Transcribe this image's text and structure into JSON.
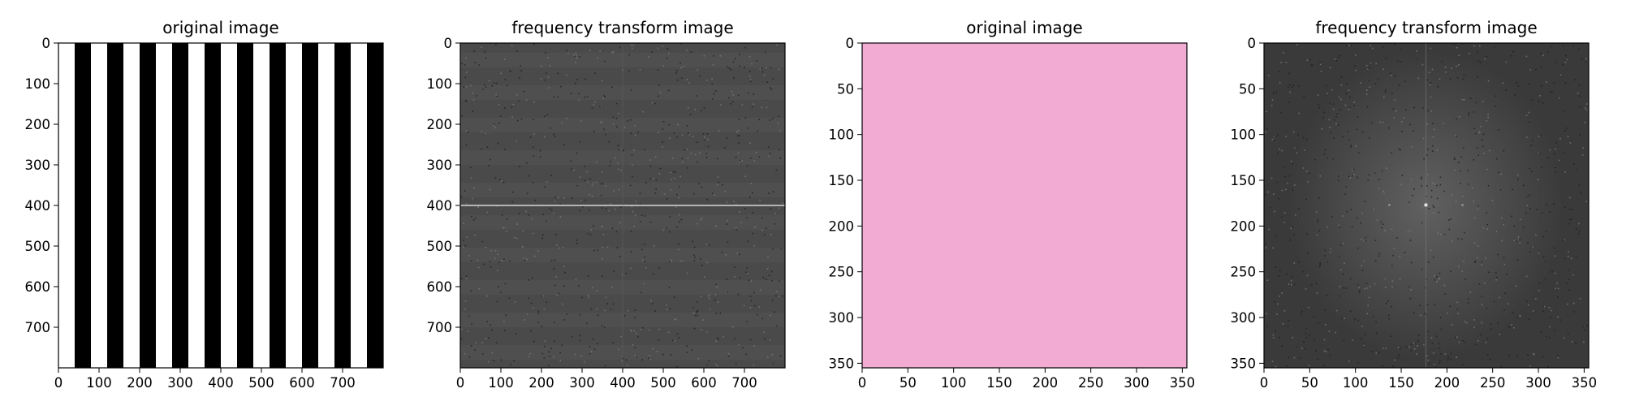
{
  "figure": {
    "background": "#ffffff"
  },
  "chart_data": [
    {
      "type": "image",
      "title": "original image",
      "content": "vertical black and white stripes",
      "stripe_width": 40,
      "stripe_colors": [
        "#ffffff",
        "#000000"
      ],
      "xlim": [
        0,
        800
      ],
      "ylim": [
        800,
        0
      ],
      "xticks": [
        0,
        100,
        200,
        300,
        400,
        500,
        600,
        700
      ],
      "yticks": [
        0,
        100,
        200,
        300,
        400,
        500,
        600,
        700
      ]
    },
    {
      "type": "image",
      "title": "frequency transform image",
      "content": "grayscale magnitude spectrum with bright horizontal line",
      "base_color": "#4a4a4a",
      "highlight_color": "#d8d8d8",
      "bright_line_y": 400,
      "xlim": [
        0,
        800
      ],
      "ylim": [
        800,
        0
      ],
      "xticks": [
        0,
        100,
        200,
        300,
        400,
        500,
        600,
        700
      ],
      "yticks": [
        0,
        100,
        200,
        300,
        400,
        500,
        600,
        700
      ]
    },
    {
      "type": "image",
      "title": "original image",
      "content": "uniform pink image",
      "fill_color": "#f2acd3",
      "xlim": [
        0,
        355
      ],
      "ylim": [
        355,
        0
      ],
      "xticks": [
        0,
        50,
        100,
        150,
        200,
        250,
        300,
        350
      ],
      "yticks": [
        0,
        50,
        100,
        150,
        200,
        250,
        300,
        350
      ]
    },
    {
      "type": "image",
      "title": "frequency transform image",
      "content": "grayscale magnitude spectrum with bright center dot and faint vertical line",
      "base_color": "#3a3a3a",
      "highlight_color": "#e0e0e0",
      "center": [
        177,
        177
      ],
      "faint_line_x": 177,
      "xlim": [
        0,
        355
      ],
      "ylim": [
        355,
        0
      ],
      "xticks": [
        0,
        50,
        100,
        150,
        200,
        250,
        300,
        350
      ],
      "yticks": [
        0,
        50,
        100,
        150,
        200,
        250,
        300,
        350
      ]
    }
  ]
}
